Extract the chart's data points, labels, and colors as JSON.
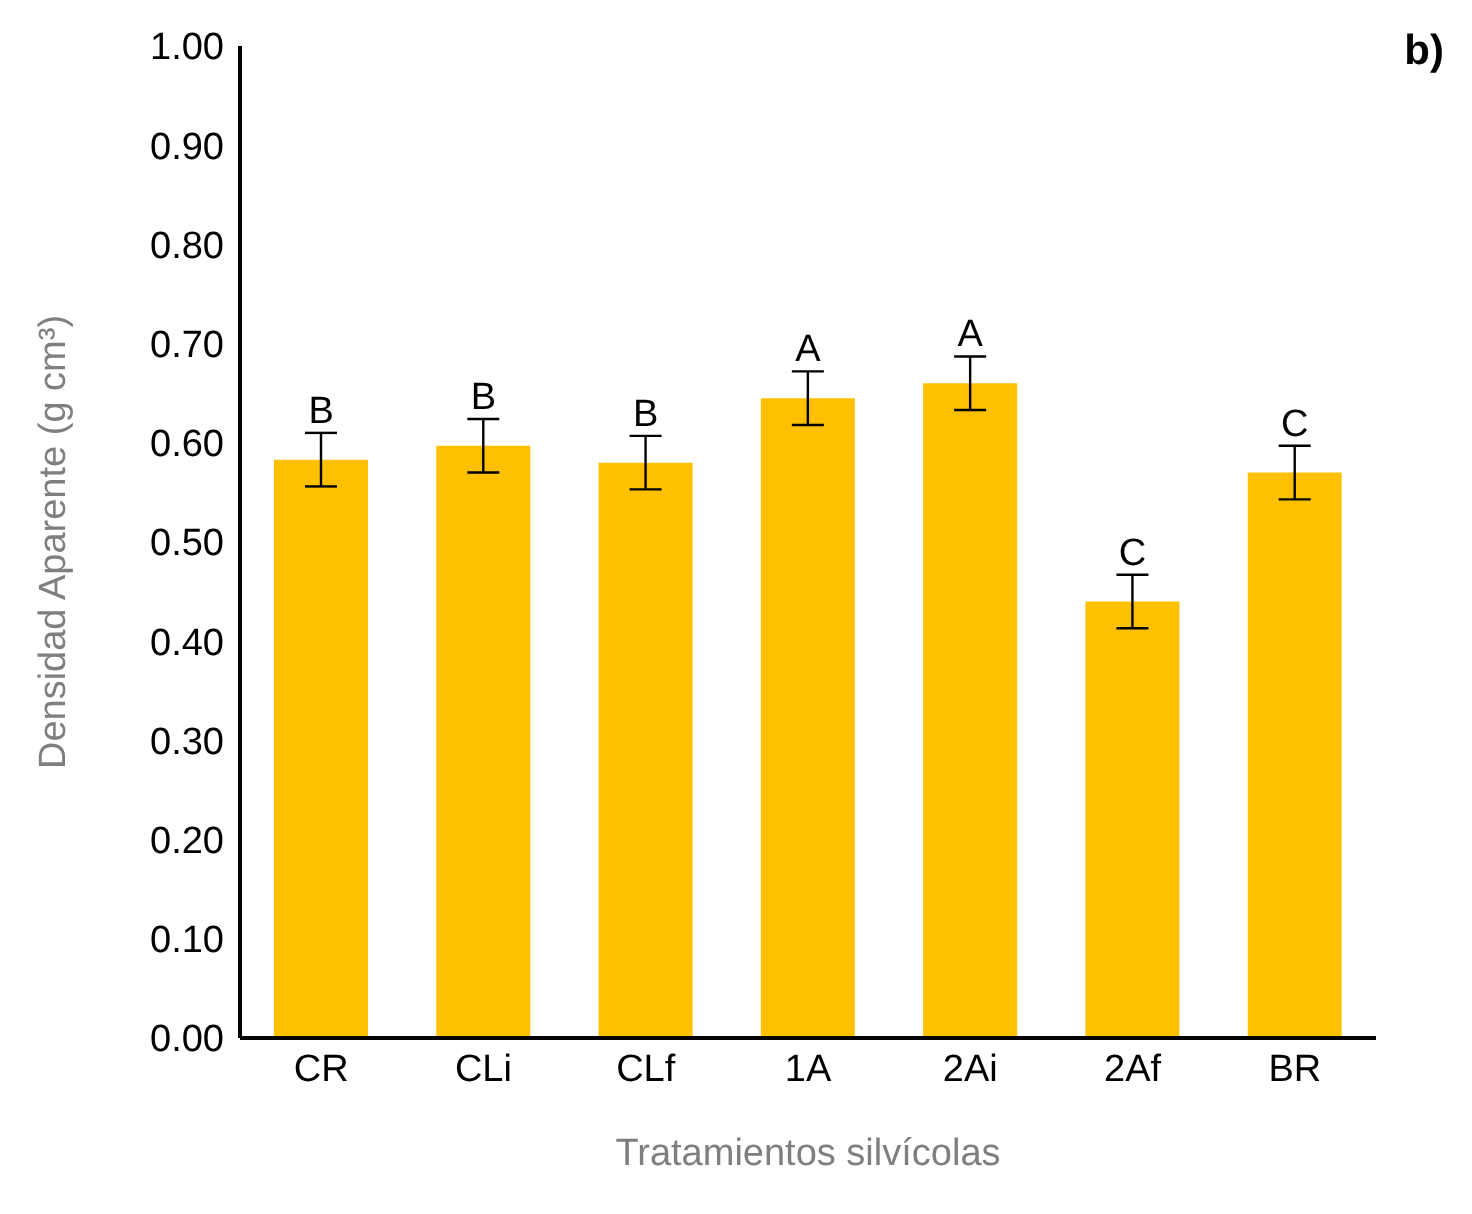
{
  "chart_data": {
    "type": "bar",
    "xlabel": "Tratamientos silvícolas",
    "ylabel": "Densidad Aparente (g cm³)",
    "categories": [
      "CR",
      "CLi",
      "CLf",
      "1A",
      "2Ai",
      "2Af",
      "BR"
    ],
    "values": [
      0.583,
      0.597,
      0.58,
      0.645,
      0.66,
      0.44,
      0.57
    ],
    "errors": [
      0.027,
      0.027,
      0.027,
      0.027,
      0.027,
      0.027,
      0.027
    ],
    "color": "#ffc000",
    "ylim": [
      0,
      1
    ],
    "yticks": [
      {
        "value": 0,
        "label": "0.00"
      },
      {
        "value": 0.1,
        "label": "0.10"
      },
      {
        "value": 0.2,
        "label": "0.20"
      },
      {
        "value": 0.3,
        "label": "0.30"
      },
      {
        "value": 0.4,
        "label": "0.40"
      },
      {
        "value": 0.5,
        "label": "0.50"
      },
      {
        "value": 0.6,
        "label": "0.60"
      },
      {
        "value": 0.7,
        "label": "0.70"
      },
      {
        "value": 0.8,
        "label": "0.80"
      },
      {
        "value": 0.9,
        "label": "0.90"
      },
      {
        "value": 1,
        "label": "1.00"
      }
    ],
    "grid": false,
    "legend": false,
    "annotations": [
      "b)",
      {
        "text": "B",
        "x": "CR",
        "y": 0.61
      },
      {
        "text": "B",
        "x": "CLi",
        "y": 0.624
      },
      {
        "text": "B",
        "x": "CLf",
        "y": 0.607
      },
      {
        "text": "A",
        "x": "1A",
        "y": 0.672
      },
      {
        "text": "A",
        "x": "2Ai",
        "y": 0.687
      },
      {
        "text": "C",
        "x": "2Af",
        "y": 0.467
      },
      {
        "text": "C",
        "x": "BR",
        "y": 0.597
      }
    ]
  }
}
